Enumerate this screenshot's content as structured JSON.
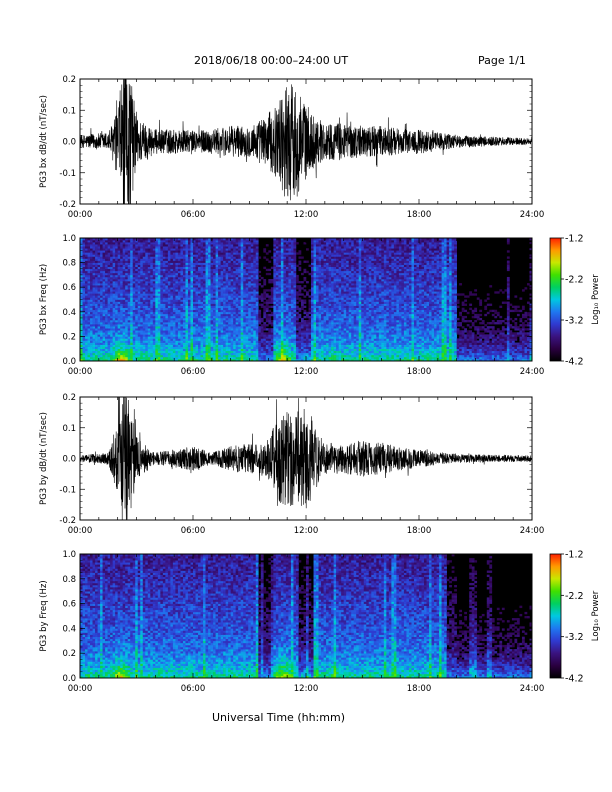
{
  "header": {
    "title": "2018/06/18  00:00–24:00 UT",
    "page": "Page 1/1"
  },
  "xlabel": "Universal Time (hh:mm)",
  "colorbar": {
    "ticks": [
      "-1.2",
      "-2.2",
      "-3.2",
      "-4.2"
    ],
    "label": "Log₁₀ Power",
    "colors": [
      "#000000",
      "#2a0040",
      "#3a1380",
      "#2f3ad0",
      "#1f78f0",
      "#00c8e0",
      "#00d060",
      "#40e000",
      "#c8e800",
      "#ff9a00",
      "#ff2000"
    ]
  },
  "chart_data": [
    {
      "type": "line",
      "ylabel": "PG3 bx dB/dt (nT/sec)",
      "x_ticks": [
        "00:00",
        "06:00",
        "12:00",
        "18:00",
        "24:00"
      ],
      "y_ticks": [
        "0.2",
        "0.1",
        "0.0",
        "-0.1",
        "-0.2"
      ],
      "ylim": [
        -0.2,
        0.2
      ],
      "xlim": [
        0,
        24
      ],
      "envelope": {
        "x": [
          0,
          1.5,
          2.0,
          2.3,
          2.6,
          3.0,
          4.0,
          5.0,
          6.0,
          7.0,
          8.0,
          9.0,
          9.8,
          10.5,
          11.0,
          11.5,
          12.0,
          12.5,
          13.0,
          14.0,
          15.0,
          16.0,
          17.0,
          18.0,
          19.0,
          20.0,
          22.0,
          24.0
        ],
        "amp": [
          0.02,
          0.03,
          0.1,
          0.25,
          0.25,
          0.08,
          0.04,
          0.04,
          0.035,
          0.04,
          0.05,
          0.05,
          0.08,
          0.12,
          0.2,
          0.18,
          0.12,
          0.08,
          0.06,
          0.06,
          0.05,
          0.05,
          0.04,
          0.04,
          0.03,
          0.02,
          0.015,
          0.01
        ]
      }
    },
    {
      "type": "heatmap",
      "ylabel": "PG3 bx Freq (Hz)",
      "x_ticks": [
        "00:00",
        "06:00",
        "12:00",
        "18:00",
        "24:00"
      ],
      "y_ticks": [
        "1.0",
        "0.8",
        "0.6",
        "0.4",
        "0.2",
        "0.0"
      ],
      "ylim": [
        0,
        1.0
      ],
      "xlim": [
        0,
        24
      ],
      "zlim": [
        -4.2,
        -1.2
      ],
      "hotspots": [
        {
          "t": 2.2,
          "level": 0.9
        },
        {
          "t": 10.8,
          "level": 0.75
        },
        {
          "t": 12.0,
          "level": 0.55
        },
        {
          "t": 13.5,
          "level": 0.45
        }
      ],
      "quiet": [
        {
          "from": 9.5,
          "to": 10.2
        },
        {
          "from": 11.5,
          "to": 12.3
        },
        {
          "from": 20.0,
          "to": 24.0
        }
      ]
    },
    {
      "type": "line",
      "ylabel": "PG3 by dB/dt (nT/sec)",
      "x_ticks": [
        "00:00",
        "06:00",
        "12:00",
        "18:00",
        "24:00"
      ],
      "y_ticks": [
        "0.2",
        "0.1",
        "0.0",
        "-0.1",
        "-0.2"
      ],
      "ylim": [
        -0.2,
        0.2
      ],
      "xlim": [
        0,
        24
      ],
      "envelope": {
        "x": [
          0,
          1.5,
          2.0,
          2.3,
          2.6,
          3.0,
          4.0,
          5.0,
          6.0,
          7.0,
          8.0,
          9.0,
          9.8,
          10.5,
          11.0,
          11.5,
          12.0,
          12.5,
          13.0,
          14.0,
          15.0,
          16.0,
          17.0,
          18.0,
          19.0,
          20.0,
          22.0,
          24.0
        ],
        "amp": [
          0.01,
          0.02,
          0.12,
          0.25,
          0.22,
          0.07,
          0.02,
          0.03,
          0.04,
          0.02,
          0.04,
          0.05,
          0.05,
          0.14,
          0.17,
          0.15,
          0.17,
          0.1,
          0.05,
          0.05,
          0.06,
          0.05,
          0.04,
          0.03,
          0.02,
          0.015,
          0.012,
          0.01
        ]
      }
    },
    {
      "type": "heatmap",
      "ylabel": "PG3 by Freq (Hz)",
      "x_ticks": [
        "00:00",
        "06:00",
        "12:00",
        "18:00",
        "24:00"
      ],
      "y_ticks": [
        "1.0",
        "0.8",
        "0.6",
        "0.4",
        "0.2",
        "0.0"
      ],
      "ylim": [
        0,
        1.0
      ],
      "xlim": [
        0,
        24
      ],
      "zlim": [
        -4.2,
        -1.2
      ],
      "hotspots": [
        {
          "t": 2.2,
          "level": 0.85
        },
        {
          "t": 10.8,
          "level": 0.8
        },
        {
          "t": 12.0,
          "level": 0.6
        },
        {
          "t": 13.5,
          "level": 0.5
        }
      ],
      "quiet": [
        {
          "from": 9.5,
          "to": 10.2
        },
        {
          "from": 11.6,
          "to": 12.4
        },
        {
          "from": 19.5,
          "to": 24.0
        }
      ]
    }
  ]
}
